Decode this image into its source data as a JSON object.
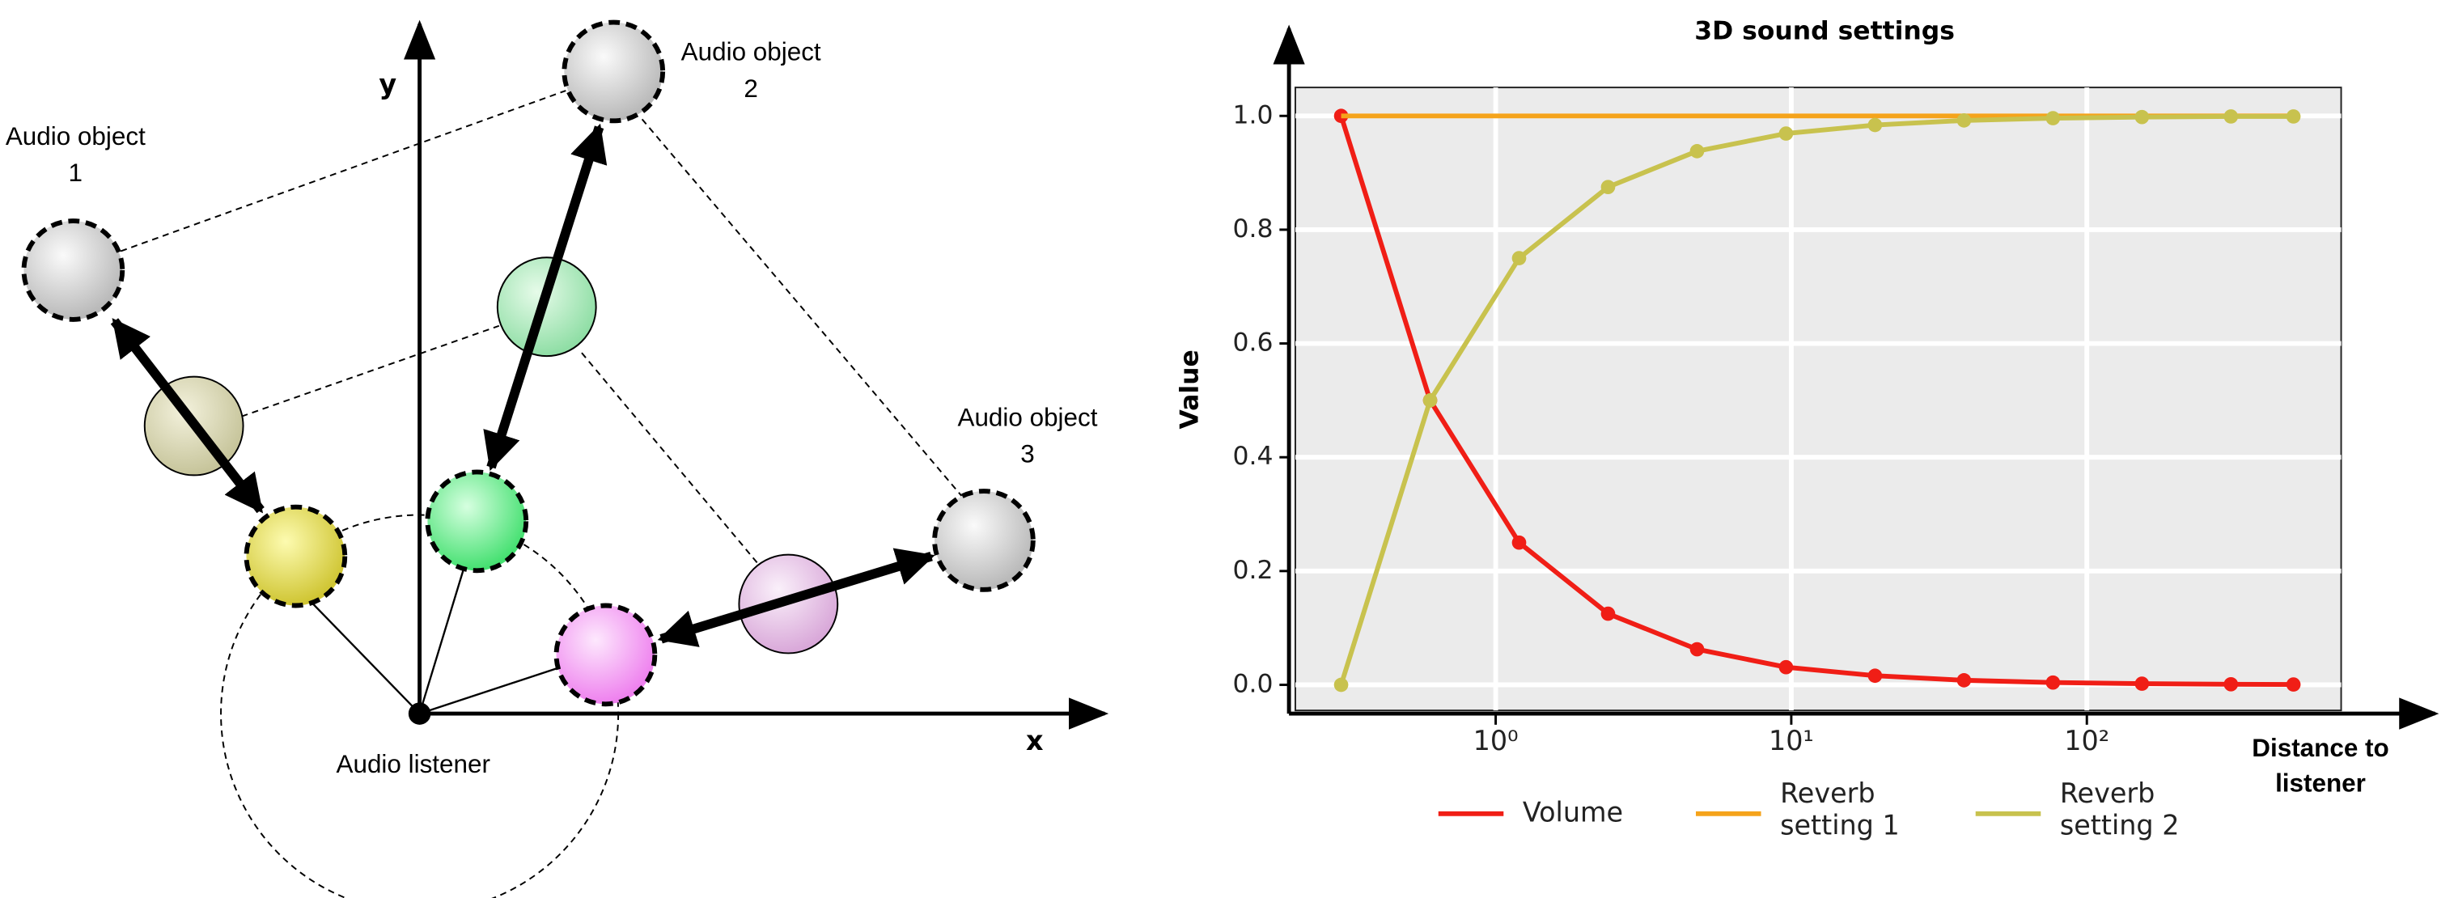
{
  "diagram": {
    "labels": {
      "object_1": "Audio object 1",
      "object_2": "Audio object 2",
      "object_3": "Audio object 3",
      "listener": "Audio listener",
      "x_axis": "x",
      "y_axis": "y"
    }
  },
  "chart_data": {
    "type": "line",
    "title": "3D sound settings",
    "xlabel": "Distance to listener",
    "ylabel": "Value",
    "x": [
      0.3,
      0.6,
      1.2,
      2.4,
      4.8,
      9.6,
      19.2,
      38.4,
      76.8,
      153.6,
      307.2,
      500
    ],
    "series": [
      {
        "name": "Volume",
        "color": "#f01e16",
        "markers": true,
        "values": [
          1,
          0.5,
          0.25,
          0.125,
          0.0625,
          0.031,
          0.016,
          0.008,
          0.004,
          0.002,
          0.001,
          0.0006
        ]
      },
      {
        "name": "Reverb setting 1",
        "color": "#f5a31b",
        "markers": false,
        "values": [
          1,
          1,
          1,
          1,
          1,
          1,
          1,
          1,
          1,
          1,
          1,
          1
        ]
      },
      {
        "name": "Reverb setting 2",
        "color": "#c8c24e",
        "markers": true,
        "values": [
          0,
          0.5,
          0.75,
          0.875,
          0.938,
          0.969,
          0.984,
          0.992,
          0.996,
          0.998,
          0.999,
          0.999
        ]
      }
    ],
    "xscale": "log",
    "xlim": [
      0.21,
      725
    ],
    "ylim": [
      -0.045,
      1.05
    ],
    "xticks": [
      {
        "value": 1,
        "label": "10⁰"
      },
      {
        "value": 10,
        "label": "10¹"
      },
      {
        "value": 100,
        "label": "10²"
      }
    ],
    "yticks": [
      {
        "value": 0,
        "label": "0.0"
      },
      {
        "value": 0.2,
        "label": "0.2"
      },
      {
        "value": 0.4,
        "label": "0.4"
      },
      {
        "value": 0.6,
        "label": "0.6"
      },
      {
        "value": 0.8,
        "label": "0.8"
      },
      {
        "value": 1,
        "label": "1.0"
      }
    ],
    "grid": true,
    "legend": "bottom"
  }
}
